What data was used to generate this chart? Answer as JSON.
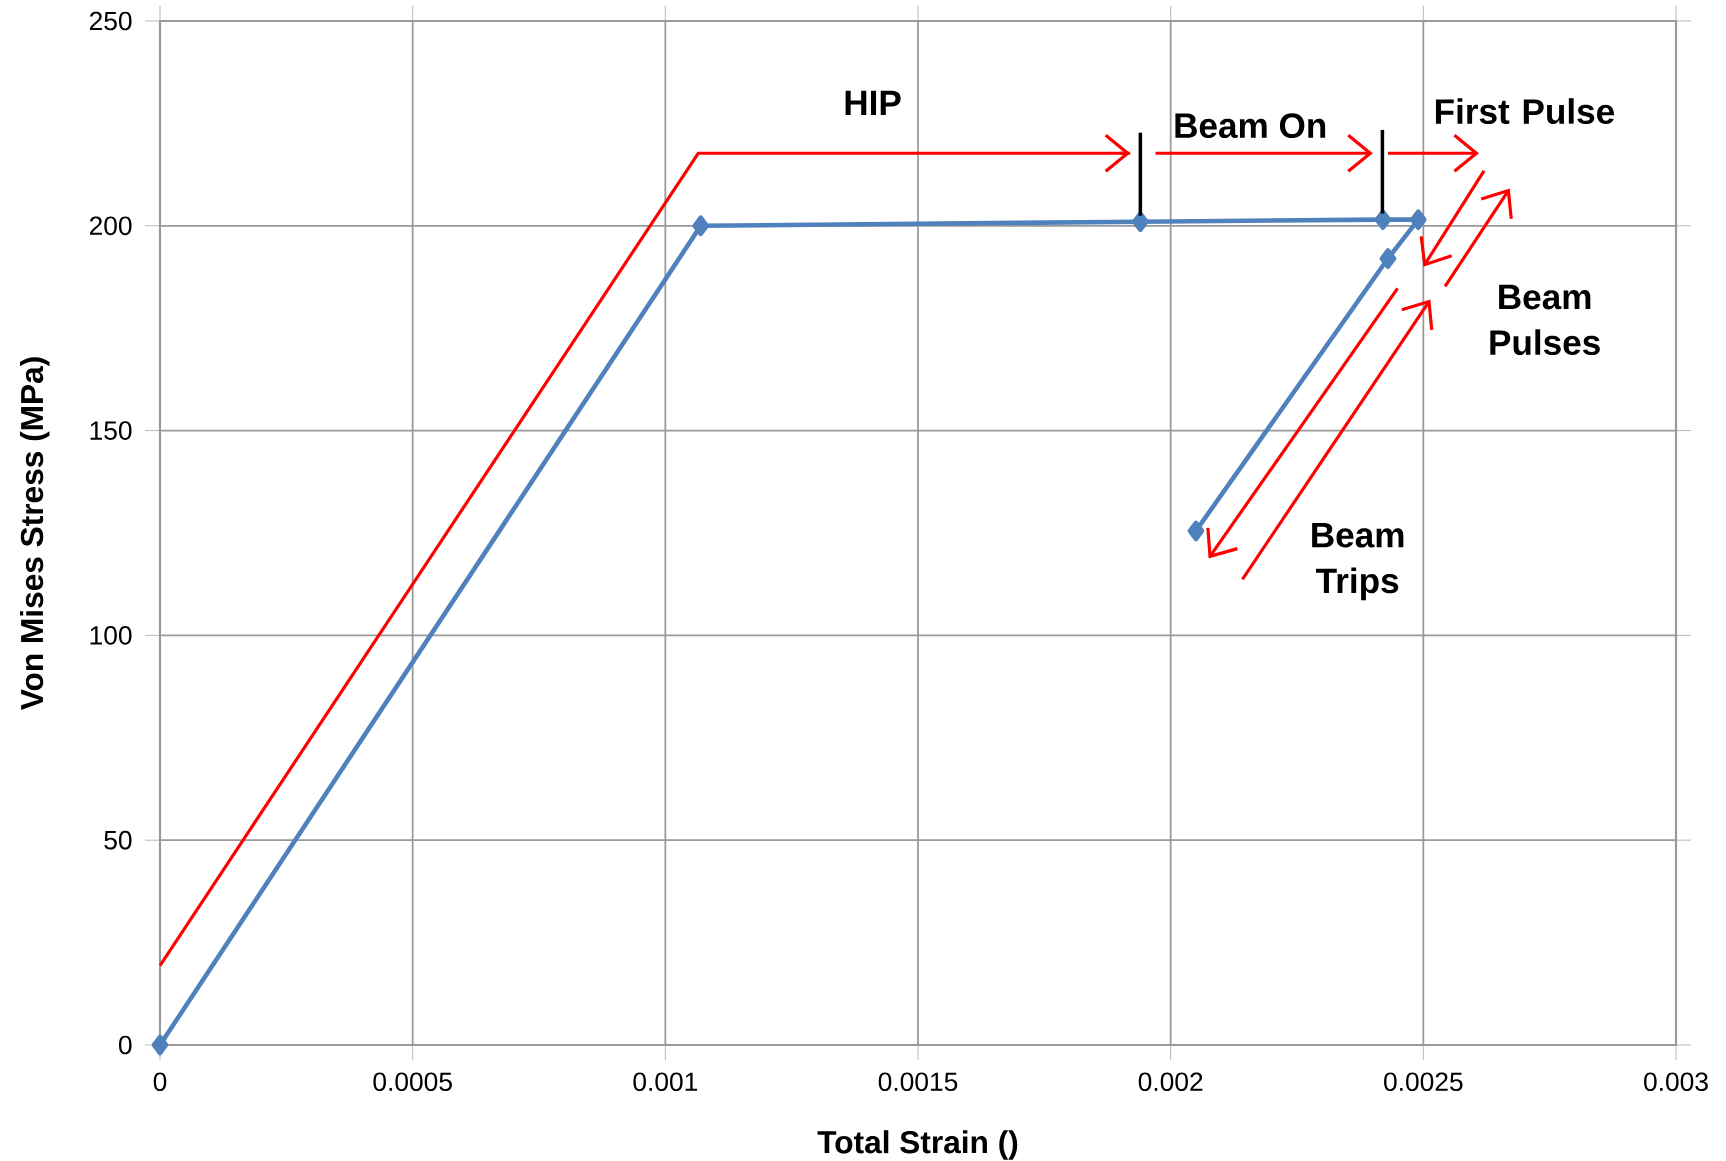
{
  "chart_data": {
    "type": "line",
    "xlabel": "Total Strain ()",
    "ylabel": "Von Mises Stress (MPa)",
    "xlim": [
      0,
      0.003
    ],
    "xticks": [
      0,
      0.0005,
      0.001,
      0.0015,
      0.002,
      0.0025,
      0.003
    ],
    "ylim": [
      0,
      250
    ],
    "yticks": [
      0,
      50,
      100,
      150,
      200,
      250
    ],
    "grid": true,
    "marker": "diamond",
    "series": [
      {
        "color": "#4f81bd",
        "x": [
          0,
          0.00107,
          0.00194,
          0.00242,
          0.00249,
          0.00243,
          0.00205
        ],
        "values": [
          0,
          200,
          201,
          201.5,
          201.5,
          192,
          125.5
        ]
      },
      {
        "color": "#ff0000",
        "marker": "none",
        "x": [
          0,
          0.001065,
          0.00192
        ],
        "values": [
          19.4,
          217.7,
          217.7
        ]
      }
    ],
    "annotations": [
      "HIP",
      {
        "text": "Beam On",
        "x": 0.00194,
        "y": 201
      },
      "First Pulse",
      "Beam Pulses",
      "Beam Trips"
    ]
  }
}
